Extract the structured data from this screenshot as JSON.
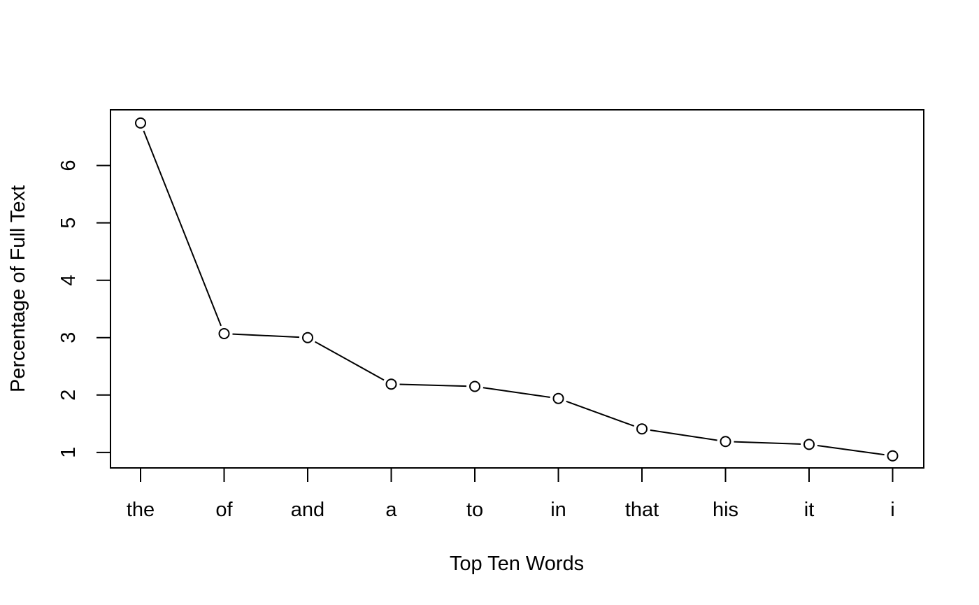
{
  "chart_data": {
    "type": "line",
    "title": "",
    "xlabel": "Top Ten Words",
    "ylabel": "Percentage of Full Text",
    "categories": [
      "the",
      "of",
      "and",
      "a",
      "to",
      "in",
      "that",
      "his",
      "it",
      "i"
    ],
    "values": [
      6.74,
      3.07,
      3.0,
      2.19,
      2.15,
      1.94,
      1.41,
      1.19,
      1.14,
      0.94
    ],
    "yticks": [
      "1",
      "2",
      "3",
      "4",
      "5",
      "6"
    ],
    "ylim": [
      0.73,
      6.97
    ],
    "grid": false,
    "legend": "none",
    "marker": "open-circle",
    "colors": {
      "line": "#000000",
      "marker_fill": "#ffffff",
      "marker_stroke": "#000000",
      "background": "#ffffff"
    }
  }
}
